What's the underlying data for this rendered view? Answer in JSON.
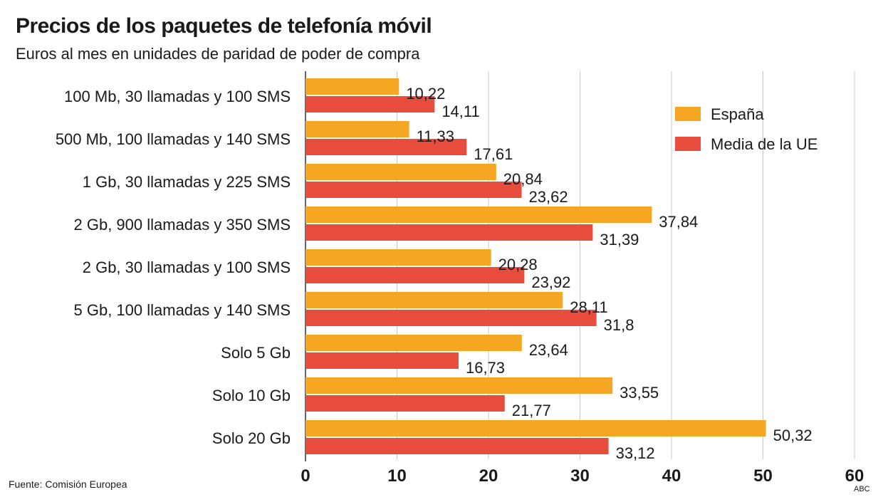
{
  "header": {
    "title": "Precios de los paquetes de telefonía móvil",
    "subtitle": "Euros al mes en unidades de paridad de poder de compra"
  },
  "footer": {
    "source": "Fuente: Comisión Europea",
    "credit": "ABC"
  },
  "colors": {
    "espana": "#f5a623",
    "ue": "#e84c3d",
    "grid": "#c8c8c8",
    "axis": "#333333"
  },
  "chart_data": {
    "type": "bar",
    "orientation": "horizontal",
    "title": "Precios de los paquetes de telefonía móvil",
    "subtitle": "Euros al mes en unidades de paridad de poder de compra",
    "xlabel": "",
    "ylabel": "",
    "xlim": [
      0,
      60
    ],
    "xticks": [
      0,
      10,
      20,
      30,
      40,
      50,
      60
    ],
    "xtick_labels": [
      "0",
      "10",
      "20",
      "30",
      "40",
      "50",
      "60"
    ],
    "grid": true,
    "legend_position": "top-right",
    "categories": [
      "100 Mb, 30 llamadas y 100 SMS",
      "500 Mb, 100 llamadas y 140 SMS",
      "1 Gb, 30 llamadas y 225 SMS",
      "2 Gb, 900 llamadas y 350 SMS",
      "2 Gb, 30 llamadas y 100 SMS",
      "5 Gb, 100 llamadas y 140 SMS",
      "Solo 5 Gb",
      "Solo 10 Gb",
      "Solo 20 Gb"
    ],
    "series": [
      {
        "name": "España",
        "color": "#f5a623",
        "values": [
          10.22,
          11.33,
          20.84,
          37.84,
          20.28,
          28.11,
          23.64,
          33.55,
          50.32
        ],
        "labels": [
          "10,22",
          "11,33",
          "20,84",
          "37,84",
          "20,28",
          "28,11",
          "23,64",
          "33,55",
          "50,32"
        ]
      },
      {
        "name": "Media de la UE",
        "color": "#e84c3d",
        "values": [
          14.11,
          17.61,
          23.62,
          31.39,
          23.92,
          31.8,
          16.73,
          21.77,
          33.12
        ],
        "labels": [
          "14,11",
          "17,61",
          "23,62",
          "31,39",
          "23,92",
          "31,8",
          "16,73",
          "21,77",
          "33,12"
        ]
      }
    ]
  }
}
